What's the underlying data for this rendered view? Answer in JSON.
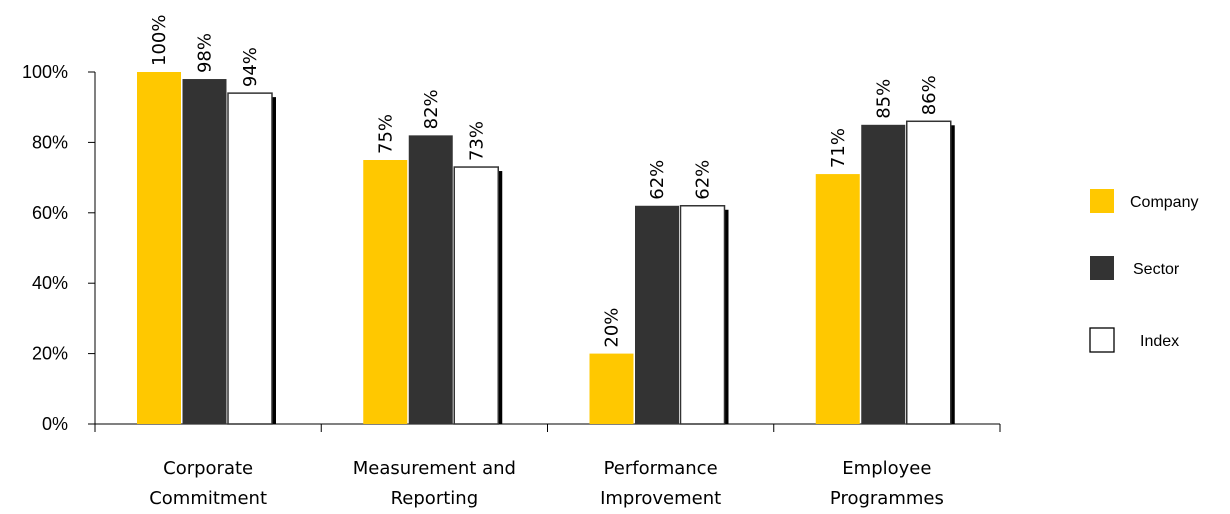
{
  "chart_data": {
    "type": "bar",
    "categories": [
      [
        "Corporate",
        "Commitment"
      ],
      [
        "Measurement and",
        "Reporting"
      ],
      [
        "Performance",
        "Improvement"
      ],
      [
        "Employee",
        "Programmes"
      ]
    ],
    "series": [
      {
        "name": "Company",
        "values": [
          100,
          75,
          20,
          71
        ],
        "labels": [
          "100%",
          "75%",
          "20%",
          "71%"
        ]
      },
      {
        "name": "Sector",
        "values": [
          98,
          82,
          62,
          85
        ],
        "labels": [
          "98%",
          "82%",
          "62%",
          "85%"
        ]
      },
      {
        "name": "Index",
        "values": [
          94,
          73,
          62,
          86
        ],
        "labels": [
          "94%",
          "73%",
          "62%",
          "86%"
        ]
      }
    ],
    "ylim": [
      0,
      100
    ],
    "yticks": [
      "0%",
      "20%",
      "40%",
      "60%",
      "80%",
      "100%"
    ],
    "grid": false,
    "legend_position": "right",
    "colors": {
      "Company": "#FFC800",
      "Sector": "#333333",
      "Index": "#FFFFFF"
    }
  }
}
